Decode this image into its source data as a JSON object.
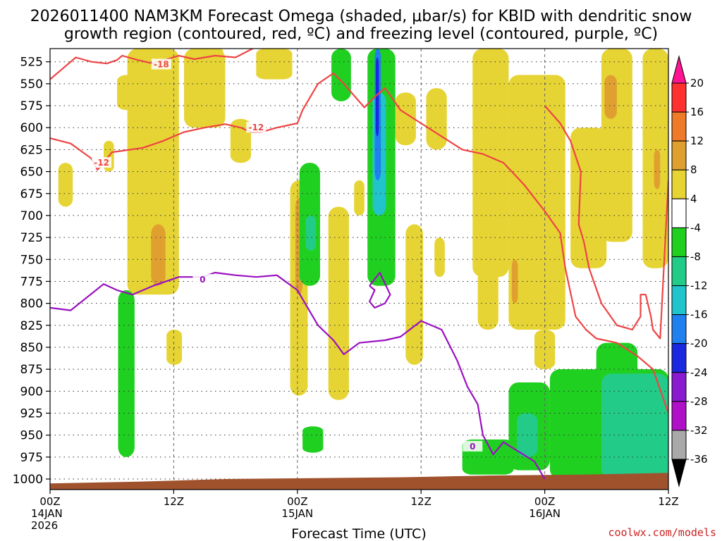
{
  "title_line1": "2026011400 NAM3KM Forecast Omega (shaded, μbar/s) for KBID with dendritic snow",
  "title_line2": "growth region (contoured, red, ºC) and freezing level (contoured, purple, ºC)",
  "xlabel": "Forecast Time (UTC)",
  "credit": "coolwx.com/models",
  "chart_data": {
    "type": "heatmap",
    "title": "2026011400 NAM3KM Forecast Omega (shaded, μbar/s) for KBID with dendritic snow growth region (contoured, red, ºC) and freezing level (contoured, purple, ºC)",
    "xlabel": "Forecast Time (UTC)",
    "ylabel": "",
    "x_unit": "forecast hour from 2026-01-14 00Z",
    "xlim": [
      0,
      60
    ],
    "ylim": [
      1012,
      510
    ],
    "y_ticks": [
      525,
      550,
      575,
      600,
      625,
      650,
      675,
      700,
      725,
      750,
      775,
      800,
      825,
      850,
      875,
      900,
      925,
      950,
      975,
      1000
    ],
    "x_ticks": [
      {
        "x": 0,
        "lines": [
          "00Z",
          "14JAN",
          "2026"
        ]
      },
      {
        "x": 12,
        "lines": [
          "12Z"
        ]
      },
      {
        "x": 24,
        "lines": [
          "00Z",
          "15JAN"
        ]
      },
      {
        "x": 36,
        "lines": [
          "12Z"
        ]
      },
      {
        "x": 48,
        "lines": [
          "00Z",
          "16JAN"
        ]
      },
      {
        "x": 60,
        "lines": [
          "12Z"
        ]
      }
    ],
    "grid": true,
    "colorbar": {
      "ticks": [
        20,
        16,
        12,
        8,
        4,
        -4,
        -8,
        -12,
        -16,
        -20,
        -24,
        -28,
        -32,
        -36
      ],
      "bins": [
        {
          "from": 20,
          "to": 24,
          "color": "#ff1493"
        },
        {
          "from": 16,
          "to": 20,
          "color": "#ff3030"
        },
        {
          "from": 12,
          "to": 16,
          "color": "#ee7a2a"
        },
        {
          "from": 8,
          "to": 12,
          "color": "#e0a030"
        },
        {
          "from": 4,
          "to": 8,
          "color": "#e6d434"
        },
        {
          "from": -4,
          "to": 4,
          "color": "#ffffff"
        },
        {
          "from": -8,
          "to": -4,
          "color": "#20d020"
        },
        {
          "from": -12,
          "to": -8,
          "color": "#22cc88"
        },
        {
          "from": -16,
          "to": -12,
          "color": "#22c4cc"
        },
        {
          "from": -20,
          "to": -16,
          "color": "#2080f0"
        },
        {
          "from": -24,
          "to": -20,
          "color": "#1a28e0"
        },
        {
          "from": -28,
          "to": -24,
          "color": "#8a1ad0"
        },
        {
          "from": -32,
          "to": -28,
          "color": "#b010c8"
        },
        {
          "from": -36,
          "to": -32,
          "color": "#a9a9a9"
        },
        {
          "from": -40,
          "to": -36,
          "color": "#000000"
        }
      ]
    },
    "colors": {
      "yellow": "#e6d434",
      "orange": "#e0a030",
      "green": "#20d020",
      "teal": "#22cc88",
      "cyan": "#22c4cc",
      "blue": "#2080f0",
      "dark_blue": "#1a28e0",
      "red_contour": "#ee4444",
      "purple_contour": "#9a10c0",
      "terrain": "#a0522d"
    },
    "shading_regions": [
      {
        "color": "yellow",
        "x": [
          7.5,
          12.5
        ],
        "p": [
          510,
          790
        ]
      },
      {
        "color": "yellow",
        "x": [
          6.5,
          8.5
        ],
        "p": [
          540,
          580
        ]
      },
      {
        "color": "orange",
        "x": [
          9.8,
          11.2
        ],
        "p": [
          710,
          780
        ]
      },
      {
        "color": "yellow",
        "x": [
          13,
          17
        ],
        "p": [
          510,
          600
        ]
      },
      {
        "color": "yellow",
        "x": [
          17.5,
          19.5
        ],
        "p": [
          590,
          640
        ]
      },
      {
        "color": "yellow",
        "x": [
          20,
          23.5
        ],
        "p": [
          510,
          545
        ]
      },
      {
        "color": "yellow",
        "x": [
          0.8,
          2.2
        ],
        "p": [
          640,
          690
        ]
      },
      {
        "color": "yellow",
        "x": [
          5.2,
          6.2
        ],
        "p": [
          615,
          650
        ]
      },
      {
        "color": "yellow",
        "x": [
          11.3,
          12.8
        ],
        "p": [
          830,
          870
        ]
      },
      {
        "color": "yellow",
        "x": [
          23.3,
          25
        ],
        "p": [
          660,
          905
        ]
      },
      {
        "color": "orange",
        "x": [
          23.8,
          24.5
        ],
        "p": [
          680,
          790
        ]
      },
      {
        "color": "yellow",
        "x": [
          27,
          29
        ],
        "p": [
          690,
          910
        ]
      },
      {
        "color": "yellow",
        "x": [
          29.5,
          30.5
        ],
        "p": [
          660,
          700
        ]
      },
      {
        "color": "yellow",
        "x": [
          30.8,
          32.5
        ],
        "p": [
          690,
          740
        ]
      },
      {
        "color": "yellow",
        "x": [
          33.5,
          35.5
        ],
        "p": [
          560,
          620
        ]
      },
      {
        "color": "yellow",
        "x": [
          34.5,
          36.2
        ],
        "p": [
          710,
          870
        ]
      },
      {
        "color": "yellow",
        "x": [
          36.5,
          38.5
        ],
        "p": [
          555,
          625
        ]
      },
      {
        "color": "yellow",
        "x": [
          37.3,
          38.3
        ],
        "p": [
          725,
          770
        ]
      },
      {
        "color": "yellow",
        "x": [
          41,
          44.5
        ],
        "p": [
          510,
          770
        ]
      },
      {
        "color": "yellow",
        "x": [
          41.5,
          43.5
        ],
        "p": [
          760,
          830
        ]
      },
      {
        "color": "yellow",
        "x": [
          44.5,
          50
        ],
        "p": [
          540,
          830
        ]
      },
      {
        "color": "orange",
        "x": [
          44.8,
          45.4
        ],
        "p": [
          750,
          800
        ]
      },
      {
        "color": "yellow",
        "x": [
          47,
          49
        ],
        "p": [
          830,
          875
        ]
      },
      {
        "color": "yellow",
        "x": [
          50.5,
          54
        ],
        "p": [
          600,
          760
        ]
      },
      {
        "color": "yellow",
        "x": [
          53.5,
          56.5
        ],
        "p": [
          510,
          730
        ]
      },
      {
        "color": "orange",
        "x": [
          53.8,
          55
        ],
        "p": [
          540,
          590
        ]
      },
      {
        "color": "yellow",
        "x": [
          57.5,
          60
        ],
        "p": [
          510,
          760
        ]
      },
      {
        "color": "orange",
        "x": [
          58.6,
          59.2
        ],
        "p": [
          625,
          670
        ]
      },
      {
        "color": "yellow",
        "x": [
          16,
          16.8
        ],
        "p": [
          510,
          530
        ]
      },
      {
        "color": "green",
        "x": [
          6.6,
          8.2
        ],
        "p": [
          785,
          975
        ]
      },
      {
        "color": "green",
        "x": [
          24.2,
          26.2
        ],
        "p": [
          640,
          780
        ]
      },
      {
        "color": "teal",
        "x": [
          24.8,
          25.8
        ],
        "p": [
          700,
          740
        ]
      },
      {
        "color": "green",
        "x": [
          27.3,
          29.2
        ],
        "p": [
          510,
          570
        ]
      },
      {
        "color": "green",
        "x": [
          24.5,
          26.5
        ],
        "p": [
          940,
          970
        ]
      },
      {
        "color": "green",
        "x": [
          30.8,
          33.5
        ],
        "p": [
          510,
          780
        ]
      },
      {
        "color": "cyan",
        "x": [
          31.3,
          32.6
        ],
        "p": [
          560,
          700
        ]
      },
      {
        "color": "blue",
        "x": [
          31.5,
          32.1
        ],
        "p": [
          510,
          660
        ]
      },
      {
        "color": "dark_blue",
        "x": [
          31.6,
          31.9
        ],
        "p": [
          520,
          610
        ]
      },
      {
        "color": "green",
        "x": [
          44.5,
          48.5
        ],
        "p": [
          890,
          990
        ]
      },
      {
        "color": "teal",
        "x": [
          45.3,
          47.3
        ],
        "p": [
          925,
          975
        ]
      },
      {
        "color": "green",
        "x": [
          48.5,
          60
        ],
        "p": [
          875,
          1000
        ]
      },
      {
        "color": "green",
        "x": [
          53,
          57
        ],
        "p": [
          845,
          990
        ]
      },
      {
        "color": "teal",
        "x": [
          53.5,
          60
        ],
        "p": [
          880,
          1000
        ]
      },
      {
        "color": "green",
        "x": [
          40,
          45
        ],
        "p": [
          955,
          995
        ]
      }
    ],
    "series": [
      {
        "name": "-18",
        "color": "red_contour",
        "label_at": [
          10.8,
          528
        ],
        "x": [
          0,
          1,
          2.5,
          4,
          5.5,
          6.5,
          7,
          8.5,
          10,
          12.5,
          14,
          16,
          18,
          20
        ],
        "p": [
          545,
          535,
          520,
          525,
          527,
          523,
          518,
          523,
          527,
          518,
          522,
          518,
          520,
          508
        ]
      },
      {
        "name": "-12",
        "color": "red_contour",
        "label_at": [
          20,
          600
        ],
        "x": [
          0,
          2,
          4,
          4.6,
          5.4,
          6,
          9,
          11,
          13,
          15,
          17,
          18.5,
          19.5,
          20.5,
          22,
          24,
          24.5,
          26,
          27.5,
          28.5,
          30.5,
          31.5,
          32.5,
          34,
          36,
          38,
          40,
          42,
          44,
          46,
          48,
          49.5,
          50,
          51,
          52,
          53,
          55,
          57,
          58.5,
          60
        ],
        "p": [
          612,
          618,
          635,
          648,
          637,
          628,
          623,
          615,
          605,
          600,
          596,
          600,
          605,
          605,
          600,
          595,
          580,
          550,
          538,
          550,
          577,
          565,
          555,
          580,
          595,
          610,
          625,
          630,
          640,
          665,
          695,
          720,
          760,
          815,
          830,
          840,
          845,
          860,
          875,
          925
        ]
      },
      {
        "name": "-12",
        "color": "red_contour",
        "label_at": [
          5,
          640
        ],
        "x": [
          48,
          49.5,
          50.5,
          51.5,
          51.3,
          51.8,
          52.3,
          53.5,
          55,
          56.5,
          57.3,
          57.3,
          57.8,
          58.3,
          58.5,
          59.2,
          60
        ],
        "p": [
          575,
          595,
          615,
          650,
          710,
          730,
          760,
          800,
          825,
          830,
          815,
          790,
          790,
          815,
          830,
          840,
          660
        ]
      },
      {
        "name": "0",
        "color": "purple_contour",
        "label_at": [
          14.8,
          773
        ],
        "x": [
          0,
          2,
          5.2,
          6.5,
          8,
          10,
          12.5,
          14.8,
          16,
          18,
          20,
          22,
          24,
          25,
          26,
          27.5,
          28.5,
          30,
          32.5,
          34,
          36,
          38,
          39.5,
          40.5,
          41.5,
          42,
          43,
          44,
          47,
          48
        ],
        "p": [
          805,
          808,
          778,
          785,
          790,
          780,
          770,
          770,
          765,
          768,
          770,
          768,
          785,
          805,
          825,
          842,
          858,
          845,
          842,
          838,
          820,
          830,
          865,
          895,
          915,
          950,
          972,
          958,
          980,
          1000
        ]
      },
      {
        "name": "0",
        "color": "purple_contour",
        "label_at": [
          41,
          963
        ],
        "x": [
          31,
          32,
          33,
          32.5,
          31.5,
          31,
          31.5,
          31
        ],
        "p": [
          780,
          765,
          790,
          800,
          805,
          798,
          785,
          780
        ]
      }
    ],
    "terrain_pressure": [
      1005,
      1003,
      1000,
      999,
      998,
      996,
      995,
      993
    ]
  }
}
